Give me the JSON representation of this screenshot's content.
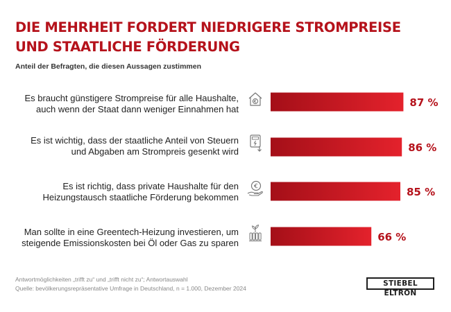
{
  "title": {
    "line1": "DIE MEHRHEIT FORDERT NIEDRIGERE STROMPREISE",
    "line2": "UND STAATLICHE FÖRDERUNG"
  },
  "subtitle": "Anteil der Befragten, die diesen Aussagen zustimmen",
  "colors": {
    "title": "#b5121b",
    "bar_dark": "#a40f18",
    "bar_light": "#e4222c",
    "value": "#b5121b"
  },
  "items": [
    {
      "line1": "Es braucht günstigere Strompreise für alle Haushalte,",
      "line2": "auch wenn der Staat dann weniger Einnahmen hat",
      "value_label": "87 %",
      "icon": "house-euro-icon"
    },
    {
      "line1": "Es ist wichtig, dass der staatliche Anteil von Steuern",
      "line2": "und Abgaben am Strompreis gesenkt wird",
      "value_label": "86 %",
      "icon": "electricity-meter-down-icon"
    },
    {
      "line1": "Es ist richtig, dass private Haushalte für den",
      "line2": "Heizungstausch staatliche Förderung bekommen",
      "value_label": "85 %",
      "icon": "hand-euro-coin-icon"
    },
    {
      "line1": "Man sollte in eine Greentech-Heizung investieren, um",
      "line2": "steigende Emissionskosten bei Öl oder Gas zu sparen",
      "value_label": "66 %",
      "icon": "radiator-plant-icon"
    }
  ],
  "chart_data": {
    "type": "bar",
    "orientation": "horizontal",
    "title": "DIE MEHRHEIT FORDERT NIEDRIGERE STROMPREISE UND STAATLICHE FÖRDERUNG",
    "subtitle": "Anteil der Befragten, die diesen Aussagen zustimmen",
    "categories": [
      "Es braucht günstigere Strompreise für alle Haushalte, auch wenn der Staat dann weniger Einnahmen hat",
      "Es ist wichtig, dass der staatliche Anteil von Steuern und Abgaben am Strompreis gesenkt wird",
      "Es ist richtig, dass private Haushalte für den Heizungstausch staatliche Förderung bekommen",
      "Man sollte in eine Greentech-Heizung investieren, um steigende Emissionskosten bei Öl oder Gas zu sparen"
    ],
    "values": [
      87,
      86,
      85,
      66
    ],
    "unit": "%",
    "grid": false,
    "legend": "none"
  },
  "footer": {
    "line1": "Antwortmöglichkeiten „trifft zu“ und „trifft nicht zu“; Antwortauswahl",
    "line2": "Quelle: bevölkerungsrepräsentative Umfrage in Deutschland, n = 1.000, Dezember 2024"
  },
  "logo": "STIEBEL ELTRON"
}
